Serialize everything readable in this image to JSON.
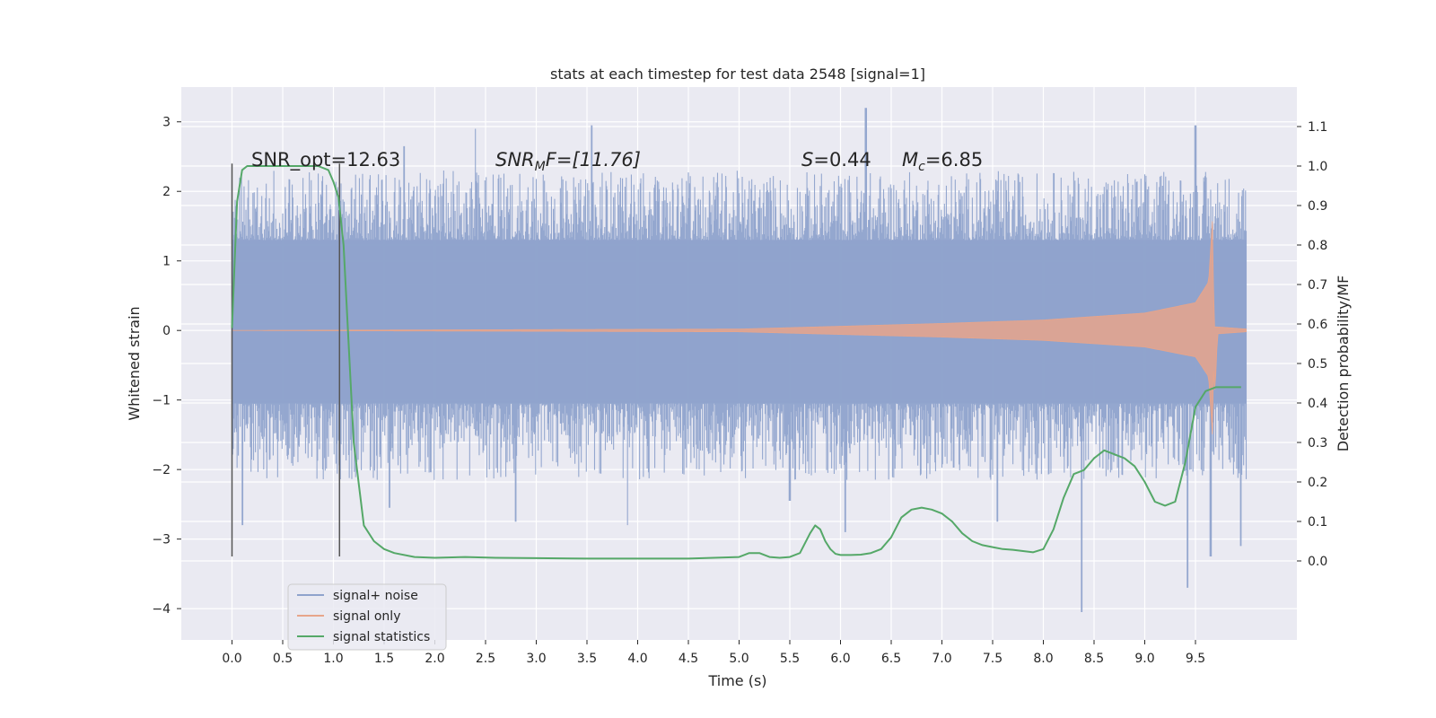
{
  "chart_data": {
    "type": "line",
    "title": "stats at each timestep for test data 2548 [signal=1]",
    "xlabel": "Time (s)",
    "ylabel": "Whitened strain",
    "ylabel_right": "Detection probability/MF",
    "xlim": [
      -0.5,
      10.5
    ],
    "ylim": [
      -4.45,
      3.5
    ],
    "ylim_right": [
      -0.2,
      1.2
    ],
    "x_ticks": [
      "0.0",
      "0.5",
      "1.0",
      "1.5",
      "2.0",
      "2.5",
      "3.0",
      "3.5",
      "4.0",
      "4.5",
      "5.0",
      "5.5",
      "6.0",
      "6.5",
      "7.0",
      "7.5",
      "8.0",
      "8.5",
      "9.0",
      "9.5"
    ],
    "x_tick_values": [
      0.0,
      0.5,
      1.0,
      1.5,
      2.0,
      2.5,
      3.0,
      3.5,
      4.0,
      4.5,
      5.0,
      5.5,
      6.0,
      6.5,
      7.0,
      7.5,
      8.0,
      8.5,
      9.0,
      9.5
    ],
    "y_ticks": [
      "3",
      "2",
      "1",
      "0",
      "−1",
      "−2",
      "−3",
      "−4"
    ],
    "y_tick_values": [
      3,
      2,
      1,
      0,
      -1,
      -2,
      -3,
      -4
    ],
    "y_right_ticks": [
      "1.1",
      "1.0",
      "0.9",
      "0.8",
      "0.7",
      "0.6",
      "0.5",
      "0.4",
      "0.3",
      "0.2",
      "0.1",
      "0.0"
    ],
    "y_right_tick_values": [
      1.1,
      1.0,
      0.9,
      0.8,
      0.7,
      0.6,
      0.5,
      0.4,
      0.3,
      0.2,
      0.1,
      0.0
    ],
    "grid": true,
    "legend_position": "lower-left",
    "annotations": {
      "snr_opt": "SNR_opt=12.63",
      "snr_mf_base": "SNR",
      "snr_mf_sub": "M",
      "snr_mf_rest": "F=[11.76]",
      "s_label": "S",
      "s_value": "=0.44",
      "mc_label": "M",
      "mc_sub": "c",
      "mc_value": "=6.85"
    },
    "vertical_markers": [
      {
        "x": 0.0,
        "y_range": [
          -3.25,
          2.4
        ]
      },
      {
        "x": 1.06,
        "y_range": [
          -3.25,
          2.4
        ]
      }
    ],
    "series": [
      {
        "name": "signal+ noise",
        "color": "#8fa3cc",
        "x_range": [
          0,
          10
        ],
        "amplitude_core": [
          -1.05,
          1.3
        ],
        "peaks": [
          [
            0.1,
            -2.8
          ],
          [
            1.55,
            -2.55
          ],
          [
            2.8,
            -2.75
          ],
          [
            3.9,
            -2.8
          ],
          [
            5.5,
            -2.45
          ],
          [
            6.05,
            -2.9
          ],
          [
            7.55,
            -2.75
          ],
          [
            8.38,
            -4.05
          ],
          [
            9.42,
            -3.7
          ],
          [
            9.65,
            -3.25
          ],
          [
            9.95,
            -3.1
          ],
          [
            1.7,
            2.65
          ],
          [
            2.4,
            2.9
          ],
          [
            6.25,
            3.2
          ],
          [
            3.55,
            2.95
          ],
          [
            9.5,
            2.95
          ]
        ]
      },
      {
        "name": "signal only",
        "color": "#e7a58b",
        "envelope": [
          [
            0.0,
            0.0
          ],
          [
            5.0,
            0.02
          ],
          [
            6.0,
            0.06
          ],
          [
            7.0,
            0.1
          ],
          [
            8.0,
            0.15
          ],
          [
            9.0,
            0.25
          ],
          [
            9.5,
            0.4
          ],
          [
            9.63,
            0.7
          ],
          [
            9.67,
            1.65
          ],
          [
            9.69,
            -1.0
          ],
          [
            9.72,
            0.05
          ],
          [
            10.0,
            0.02
          ]
        ]
      },
      {
        "name": "signal statistics",
        "color": "#55a868",
        "axis": "right",
        "x": [
          0.0,
          0.05,
          0.1,
          0.15,
          0.2,
          0.3,
          0.5,
          0.7,
          0.85,
          0.95,
          1.0,
          1.05,
          1.1,
          1.15,
          1.2,
          1.3,
          1.4,
          1.5,
          1.6,
          1.8,
          2.0,
          2.3,
          2.6,
          3.0,
          3.5,
          4.0,
          4.5,
          5.0,
          5.1,
          5.2,
          5.3,
          5.4,
          5.5,
          5.6,
          5.7,
          5.75,
          5.8,
          5.85,
          5.9,
          5.95,
          6.0,
          6.1,
          6.2,
          6.3,
          6.4,
          6.5,
          6.6,
          6.7,
          6.8,
          6.9,
          7.0,
          7.1,
          7.2,
          7.3,
          7.4,
          7.5,
          7.6,
          7.7,
          7.8,
          7.9,
          8.0,
          8.1,
          8.2,
          8.3,
          8.4,
          8.5,
          8.6,
          8.7,
          8.8,
          8.9,
          9.0,
          9.1,
          9.2,
          9.3,
          9.4,
          9.5,
          9.6,
          9.7,
          9.8,
          9.9,
          9.95
        ],
        "y": [
          0.59,
          0.91,
          0.99,
          1.0,
          1.0,
          1.0,
          1.0,
          1.0,
          1.0,
          0.99,
          0.96,
          0.92,
          0.8,
          0.55,
          0.3,
          0.09,
          0.05,
          0.03,
          0.02,
          0.01,
          0.008,
          0.01,
          0.008,
          0.007,
          0.006,
          0.006,
          0.006,
          0.01,
          0.02,
          0.02,
          0.01,
          0.008,
          0.01,
          0.02,
          0.07,
          0.09,
          0.08,
          0.05,
          0.03,
          0.018,
          0.015,
          0.015,
          0.016,
          0.02,
          0.03,
          0.06,
          0.11,
          0.13,
          0.135,
          0.13,
          0.12,
          0.1,
          0.07,
          0.05,
          0.04,
          0.035,
          0.03,
          0.028,
          0.025,
          0.022,
          0.03,
          0.08,
          0.16,
          0.22,
          0.23,
          0.26,
          0.28,
          0.27,
          0.26,
          0.24,
          0.2,
          0.15,
          0.14,
          0.15,
          0.25,
          0.39,
          0.43,
          0.44,
          0.44,
          0.44,
          0.44
        ]
      }
    ]
  }
}
